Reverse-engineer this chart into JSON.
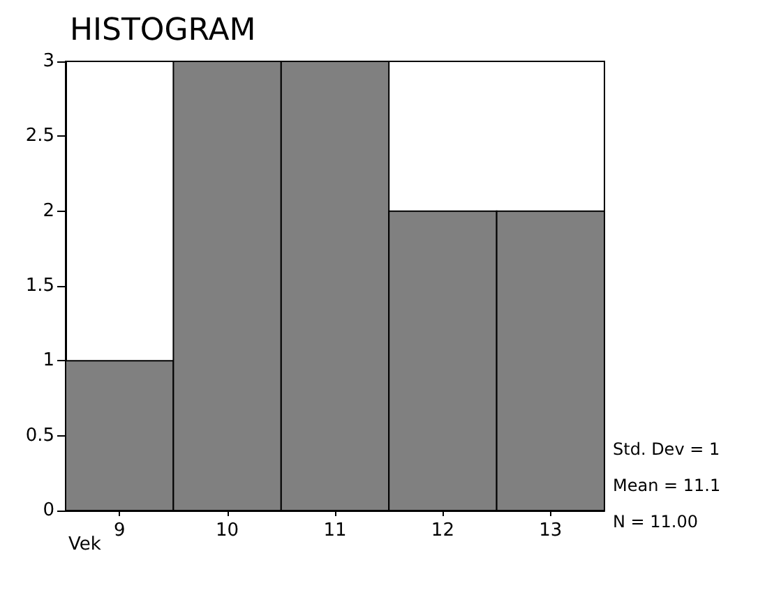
{
  "chart_data": {
    "type": "histogram",
    "title": "HISTOGRAM",
    "xlabel": "Vek",
    "bins": [
      8.5,
      9.5,
      10.5,
      11.5,
      12.5,
      13.5
    ],
    "values": [
      1,
      3,
      3,
      2,
      2
    ],
    "color": "#808080",
    "xlim": [
      8.5,
      13.5
    ],
    "xticks": [
      9,
      10,
      11,
      12,
      13
    ],
    "ylim": [
      0,
      3
    ],
    "yticks": [
      0,
      0.5,
      1,
      1.5,
      2,
      2.5,
      3
    ],
    "grid": false,
    "annotations": [
      "Std. Dev = 1",
      "Mean = 11.1",
      "N = 11.00"
    ]
  }
}
